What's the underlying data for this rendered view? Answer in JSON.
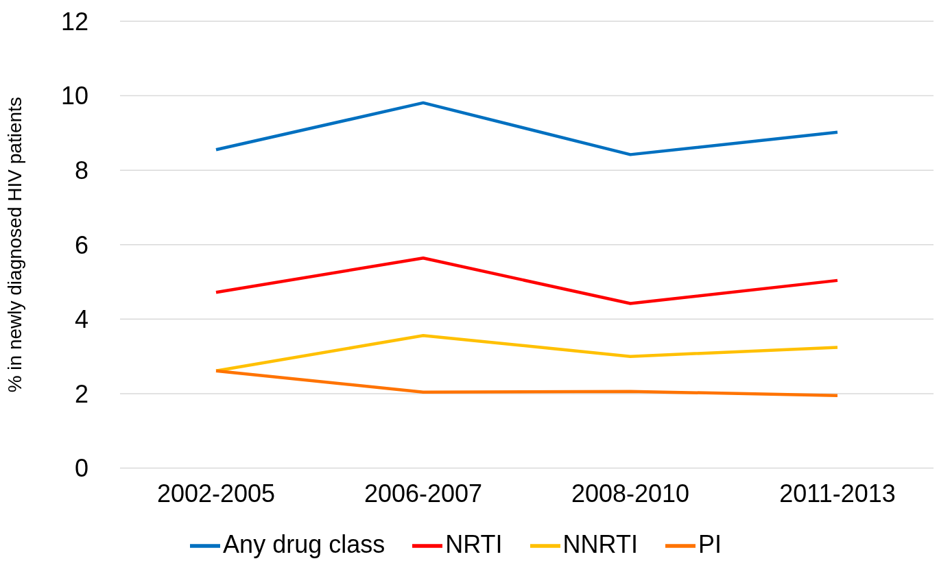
{
  "chart_data": {
    "type": "line",
    "ylabel": "% in newly diagnosed HIV patients",
    "categories": [
      "2002-2005",
      "2006-2007",
      "2008-2010",
      "2011-2013"
    ],
    "series": [
      {
        "name": "Any drug class",
        "color": "#0070c0",
        "values": [
          8.55,
          9.81,
          8.42,
          9.02
        ]
      },
      {
        "name": "NRTI",
        "color": "#ff0000",
        "values": [
          4.72,
          5.64,
          4.42,
          5.04
        ]
      },
      {
        "name": "NNRTI",
        "color": "#ffc000",
        "values": [
          2.61,
          3.56,
          3.0,
          3.24
        ]
      },
      {
        "name": "PI",
        "color": "#ff7300",
        "values": [
          2.61,
          2.04,
          2.06,
          1.95
        ]
      }
    ],
    "ylim": [
      0,
      12
    ],
    "yticks": [
      0,
      2,
      4,
      6,
      8,
      10,
      12
    ],
    "grid": "y",
    "legend": "bottom",
    "marker": "none",
    "line_style": "solid"
  }
}
